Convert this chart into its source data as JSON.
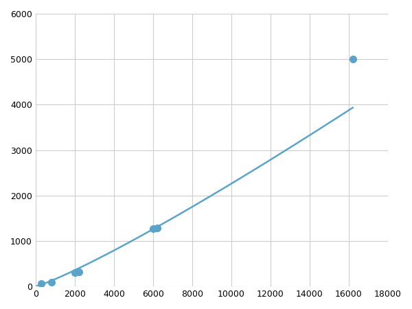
{
  "x": [
    300,
    800,
    2000,
    2200,
    6000,
    6200,
    16200
  ],
  "y": [
    58,
    100,
    305,
    325,
    1270,
    1285,
    5000
  ],
  "line_color": "#5ba3c9",
  "marker_color": "#5ba3c9",
  "marker_size": 7,
  "line_width": 1.8,
  "xlim": [
    0,
    18000
  ],
  "ylim": [
    0,
    6000
  ],
  "xticks": [
    0,
    2000,
    4000,
    6000,
    8000,
    10000,
    12000,
    14000,
    16000,
    18000
  ],
  "yticks": [
    0,
    1000,
    2000,
    3000,
    4000,
    5000,
    6000
  ],
  "grid_color": "#cccccc",
  "background_color": "#ffffff",
  "fig_background_color": "#ffffff"
}
